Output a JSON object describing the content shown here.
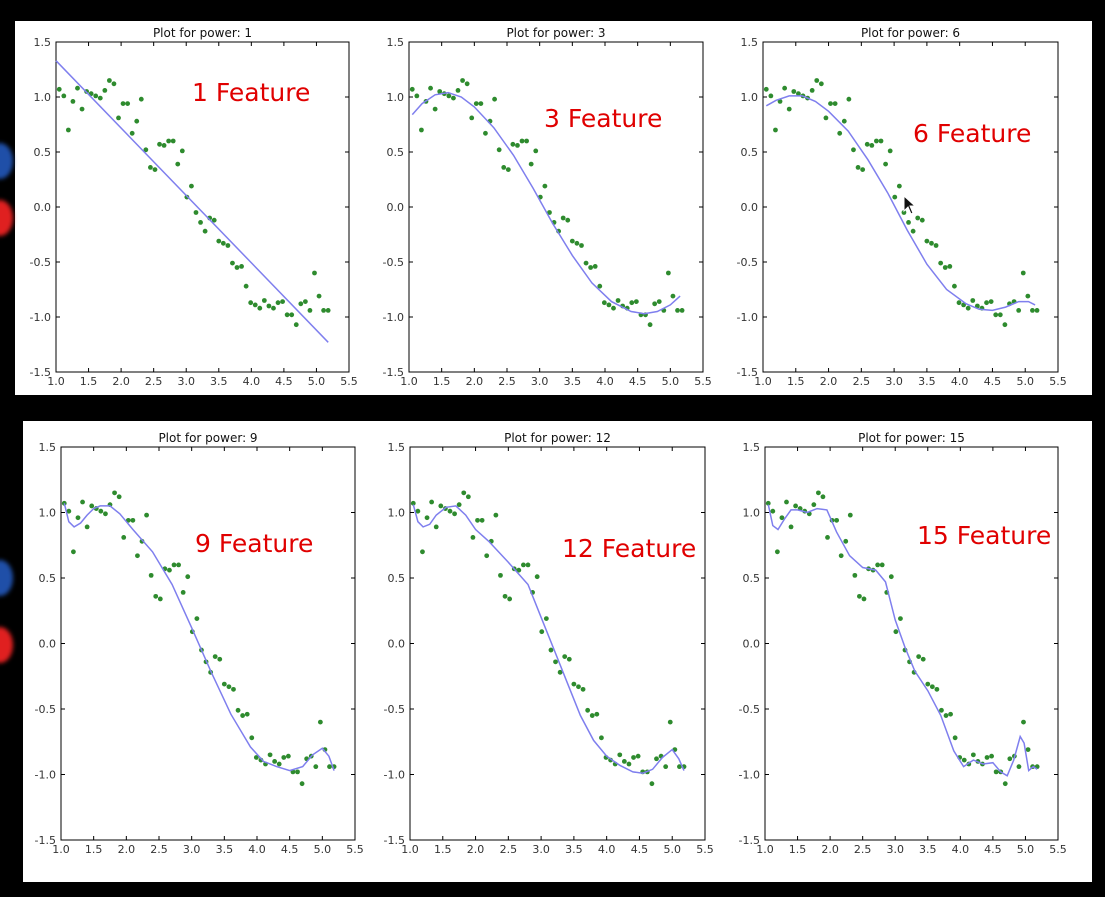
{
  "colors": {
    "frame_background": "#000000",
    "panel_background": "#ffffff",
    "fit_line": "#7f7fee",
    "data_points": "#2e8b2e",
    "feature_label": "#e00000",
    "side_dot_blue": "#1f4fa8",
    "side_dot_red": "#e02020"
  },
  "side_dots": [
    {
      "icon": "blue-circle-icon",
      "color": "#1f4fa8"
    },
    {
      "icon": "red-circle-icon",
      "color": "#e02020"
    }
  ],
  "cursor": {
    "icon": "mouse-pointer-icon"
  },
  "feature_labels": [
    "1 Feature",
    "3 Feature",
    "6 Feature",
    "9 Feature",
    "12 Feature",
    "15 Feature"
  ],
  "chart_data": [
    {
      "type": "scatter",
      "title": "Plot for power: 1",
      "xlim": [
        1.0,
        5.5
      ],
      "ylim": [
        -1.5,
        1.5
      ],
      "xticks": [
        "1.0",
        "1.5",
        "2.0",
        "2.5",
        "3.0",
        "3.5",
        "4.0",
        "4.5",
        "5.0",
        "5.5"
      ],
      "yticks": [
        "1.5",
        "1.0",
        "0.5",
        "0.0",
        "-0.5",
        "-1.0",
        "-1.5"
      ],
      "series": [
        {
          "type": "scatter",
          "x": [
            1.05,
            1.12,
            1.19,
            1.26,
            1.33,
            1.4,
            1.47,
            1.54,
            1.61,
            1.68,
            1.75,
            1.82,
            1.89,
            1.96,
            2.03,
            2.1,
            2.17,
            2.24,
            2.31,
            2.38,
            2.45,
            2.52,
            2.59,
            2.66,
            2.73,
            2.8,
            2.87,
            2.94,
            3.01,
            3.08,
            3.15,
            3.22,
            3.29,
            3.36,
            3.43,
            3.5,
            3.57,
            3.64,
            3.71,
            3.78,
            3.85,
            3.92,
            3.99,
            4.06,
            4.13,
            4.2,
            4.27,
            4.34,
            4.41,
            4.48,
            4.55,
            4.62,
            4.69,
            4.76,
            4.83,
            4.9,
            4.97,
            5.04,
            5.11,
            5.18
          ],
          "y": [
            1.07,
            1.01,
            0.7,
            0.96,
            1.08,
            0.89,
            1.05,
            1.03,
            1.01,
            0.99,
            1.06,
            1.15,
            1.12,
            0.81,
            0.94,
            0.94,
            0.67,
            0.78,
            0.98,
            0.52,
            0.36,
            0.34,
            0.57,
            0.56,
            0.6,
            0.6,
            0.39,
            0.51,
            0.09,
            0.19,
            -0.05,
            -0.14,
            -0.22,
            -0.1,
            -0.12,
            -0.31,
            -0.33,
            -0.35,
            -0.51,
            -0.55,
            -0.54,
            -0.72,
            -0.87,
            -0.89,
            -0.92,
            -0.85,
            -0.9,
            -0.92,
            -0.87,
            -0.86,
            -0.98,
            -0.98,
            -1.07,
            -0.88,
            -0.86,
            -0.94,
            -0.6,
            -0.81,
            -0.94,
            -0.94
          ]
        },
        {
          "type": "line",
          "x": [
            1.0,
            5.18
          ],
          "y": [
            1.33,
            -1.23
          ]
        }
      ]
    },
    {
      "type": "scatter",
      "title": "Plot for power: 3",
      "xlim": [
        1.0,
        5.5
      ],
      "ylim": [
        -1.5,
        1.5
      ],
      "xticks": [
        "1.0",
        "1.5",
        "2.0",
        "2.5",
        "3.0",
        "3.5",
        "4.0",
        "4.5",
        "5.0",
        "5.5"
      ],
      "yticks": [
        "1.5",
        "1.0",
        "0.5",
        "0.0",
        "-0.5",
        "-1.0",
        "-1.5"
      ],
      "series": [
        {
          "type": "scatter",
          "same_points_as_chart": 0
        },
        {
          "type": "line",
          "x": [
            1.05,
            1.2,
            1.4,
            1.6,
            1.8,
            2.0,
            2.3,
            2.6,
            2.9,
            3.2,
            3.5,
            3.8,
            4.1,
            4.4,
            4.6,
            4.8,
            5.0,
            5.15
          ],
          "y": [
            0.84,
            0.94,
            1.02,
            1.04,
            1.0,
            0.91,
            0.72,
            0.47,
            0.17,
            -0.15,
            -0.44,
            -0.69,
            -0.86,
            -0.95,
            -0.97,
            -0.95,
            -0.89,
            -0.81
          ]
        }
      ]
    },
    {
      "type": "scatter",
      "title": "Plot for power: 6",
      "xlim": [
        1.0,
        5.5
      ],
      "ylim": [
        -1.5,
        1.5
      ],
      "xticks": [
        "1.0",
        "1.5",
        "2.0",
        "2.5",
        "3.0",
        "3.5",
        "4.0",
        "4.5",
        "5.0",
        "5.5"
      ],
      "yticks": [
        "1.5",
        "1.0",
        "0.5",
        "0.0",
        "-0.5",
        "-1.0",
        "-1.5"
      ],
      "series": [
        {
          "type": "scatter",
          "same_points_as_chart": 0
        },
        {
          "type": "line",
          "x": [
            1.05,
            1.2,
            1.4,
            1.6,
            1.8,
            2.0,
            2.3,
            2.6,
            2.9,
            3.2,
            3.5,
            3.8,
            4.1,
            4.3,
            4.5,
            4.7,
            4.9,
            5.05,
            5.15
          ],
          "y": [
            0.92,
            0.97,
            1.01,
            1.01,
            0.96,
            0.87,
            0.69,
            0.43,
            0.13,
            -0.21,
            -0.52,
            -0.75,
            -0.88,
            -0.93,
            -0.94,
            -0.91,
            -0.86,
            -0.86,
            -0.89
          ]
        }
      ]
    },
    {
      "type": "scatter",
      "title": "Plot for power: 9",
      "xlim": [
        1.0,
        5.5
      ],
      "ylim": [
        -1.5,
        1.5
      ],
      "xticks": [
        "1.0",
        "1.5",
        "2.0",
        "2.5",
        "3.0",
        "3.5",
        "4.0",
        "4.5",
        "5.0",
        "5.5"
      ],
      "yticks": [
        "1.5",
        "1.0",
        "0.5",
        "0.0",
        "-0.5",
        "-1.0",
        "-1.5"
      ],
      "series": [
        {
          "type": "scatter",
          "same_points_as_chart": 0
        },
        {
          "type": "line",
          "x": [
            1.05,
            1.12,
            1.2,
            1.3,
            1.4,
            1.5,
            1.6,
            1.75,
            1.9,
            2.1,
            2.4,
            2.7,
            3.0,
            3.3,
            3.6,
            3.9,
            4.1,
            4.3,
            4.5,
            4.7,
            4.85,
            5.0,
            5.1,
            5.18
          ],
          "y": [
            1.07,
            0.93,
            0.89,
            0.92,
            0.98,
            1.03,
            1.05,
            1.05,
            0.99,
            0.87,
            0.7,
            0.45,
            0.12,
            -0.22,
            -0.54,
            -0.79,
            -0.9,
            -0.94,
            -0.97,
            -0.94,
            -0.85,
            -0.8,
            -0.86,
            -0.97
          ]
        }
      ]
    },
    {
      "type": "scatter",
      "title": "Plot for power: 12",
      "xlim": [
        1.0,
        5.5
      ],
      "ylim": [
        -1.5,
        1.5
      ],
      "xticks": [
        "1.0",
        "1.5",
        "2.0",
        "2.5",
        "3.0",
        "3.5",
        "4.0",
        "4.5",
        "5.0",
        "5.5"
      ],
      "yticks": [
        "1.5",
        "1.0",
        "0.5",
        "0.0",
        "-0.5",
        "-1.0",
        "-1.5"
      ],
      "series": [
        {
          "type": "scatter",
          "same_points_as_chart": 0
        },
        {
          "type": "line",
          "x": [
            1.05,
            1.12,
            1.2,
            1.3,
            1.4,
            1.55,
            1.7,
            1.85,
            2.0,
            2.2,
            2.5,
            2.8,
            3.0,
            3.2,
            3.4,
            3.6,
            3.8,
            4.0,
            4.2,
            4.4,
            4.55,
            4.7,
            4.85,
            5.0,
            5.1,
            5.18
          ],
          "y": [
            1.06,
            0.93,
            0.89,
            0.91,
            0.98,
            1.04,
            1.05,
            0.98,
            0.87,
            0.78,
            0.62,
            0.45,
            0.2,
            -0.05,
            -0.3,
            -0.55,
            -0.74,
            -0.86,
            -0.93,
            -0.98,
            -0.99,
            -0.96,
            -0.87,
            -0.81,
            -0.88,
            -0.97
          ]
        }
      ]
    },
    {
      "type": "scatter",
      "title": "Plot for power: 15",
      "xlim": [
        1.0,
        5.5
      ],
      "ylim": [
        -1.5,
        1.5
      ],
      "xticks": [
        "1.0",
        "1.5",
        "2.0",
        "2.5",
        "3.0",
        "3.5",
        "4.0",
        "4.5",
        "5.0",
        "5.5"
      ],
      "yticks": [
        "1.5",
        "1.0",
        "0.5",
        "0.0",
        "-0.5",
        "-1.0",
        "-1.5"
      ],
      "series": [
        {
          "type": "scatter",
          "same_points_as_chart": 0
        },
        {
          "type": "line",
          "x": [
            1.05,
            1.12,
            1.2,
            1.3,
            1.4,
            1.5,
            1.65,
            1.8,
            1.95,
            2.1,
            2.3,
            2.5,
            2.7,
            2.85,
            3.0,
            3.15,
            3.3,
            3.5,
            3.7,
            3.9,
            4.05,
            4.2,
            4.35,
            4.5,
            4.62,
            4.72,
            4.82,
            4.92,
            4.98,
            5.05,
            5.12,
            5.18
          ],
          "y": [
            1.06,
            0.9,
            0.87,
            0.95,
            1.02,
            1.02,
            1.0,
            1.03,
            1.02,
            0.85,
            0.67,
            0.58,
            0.56,
            0.47,
            0.18,
            -0.03,
            -0.21,
            -0.36,
            -0.55,
            -0.82,
            -0.94,
            -0.89,
            -0.92,
            -0.91,
            -0.98,
            -1.01,
            -0.89,
            -0.71,
            -0.76,
            -0.97,
            -0.94,
            -0.96
          ]
        }
      ]
    }
  ]
}
